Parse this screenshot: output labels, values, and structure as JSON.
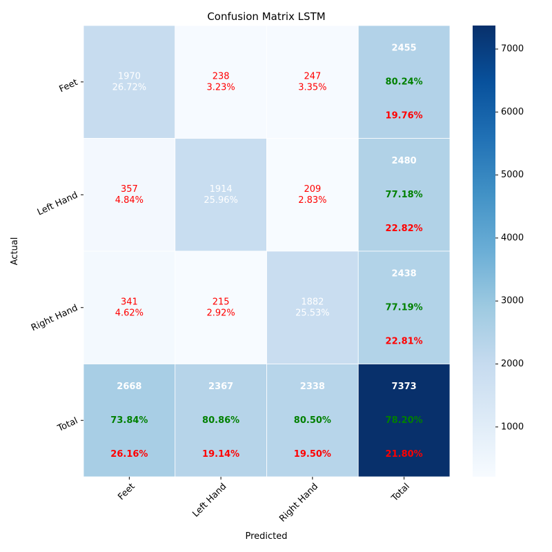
{
  "chart_data": {
    "type": "heatmap",
    "title": "Confusion Matrix LSTM",
    "xlabel": "Predicted",
    "ylabel": "Actual",
    "x_categories": [
      "Feet",
      "Left Hand",
      "Right Hand",
      "Total"
    ],
    "y_categories": [
      "Feet",
      "Left Hand",
      "Right Hand",
      "Total"
    ],
    "cells": [
      [
        {
          "value": 1970,
          "lines": [
            "1970",
            "26.72%"
          ]
        },
        {
          "value": 238,
          "lines": [
            "238",
            "3.23%"
          ]
        },
        {
          "value": 247,
          "lines": [
            "247",
            "3.35%"
          ]
        },
        {
          "value": 2455,
          "lines": [
            "2455",
            "80.24%",
            "19.76%"
          ]
        }
      ],
      [
        {
          "value": 357,
          "lines": [
            "357",
            "4.84%"
          ]
        },
        {
          "value": 1914,
          "lines": [
            "1914",
            "25.96%"
          ]
        },
        {
          "value": 209,
          "lines": [
            "209",
            "2.83%"
          ]
        },
        {
          "value": 2480,
          "lines": [
            "2480",
            "77.18%",
            "22.82%"
          ]
        }
      ],
      [
        {
          "value": 341,
          "lines": [
            "341",
            "4.62%"
          ]
        },
        {
          "value": 215,
          "lines": [
            "215",
            "2.92%"
          ]
        },
        {
          "value": 1882,
          "lines": [
            "1882",
            "25.53%"
          ]
        },
        {
          "value": 2438,
          "lines": [
            "2438",
            "77.19%",
            "22.81%"
          ]
        }
      ],
      [
        {
          "value": 2668,
          "lines": [
            "2668",
            "73.84%",
            "26.16%"
          ]
        },
        {
          "value": 2367,
          "lines": [
            "2367",
            "80.86%",
            "19.14%"
          ]
        },
        {
          "value": 2338,
          "lines": [
            "2338",
            "80.50%",
            "19.50%"
          ]
        },
        {
          "value": 7373,
          "lines": [
            "7373",
            "78.20%",
            "21.80%"
          ]
        }
      ]
    ],
    "colorscale": "Blues",
    "vmin": 209,
    "vmax": 7373,
    "colorbar_ticks": [
      1000,
      2000,
      3000,
      4000,
      5000,
      6000,
      7000
    ],
    "colors": {
      "diagonal_text": "#ffffff",
      "offdiag_text": "#ff0000",
      "total_count": "#ffffff",
      "total_correct": "#008000",
      "total_error": "#ff0000"
    }
  }
}
